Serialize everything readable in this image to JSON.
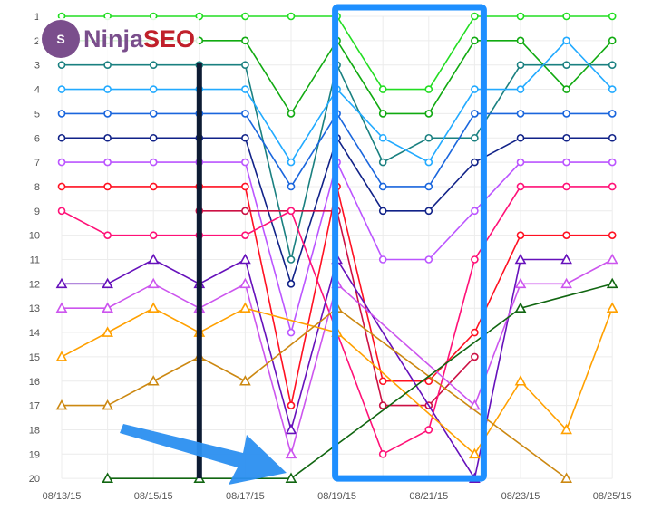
{
  "brand": {
    "part1": "Ninja",
    "part2": "SEO",
    "badge_letter": "S"
  },
  "chart_data": {
    "type": "line",
    "title": "",
    "xlabel": "",
    "ylabel": "",
    "x": [
      "08/13/15",
      "08/14/15",
      "08/15/15",
      "08/16/15",
      "08/17/15",
      "08/18/15",
      "08/19/15",
      "08/20/15",
      "08/21/15",
      "08/22/15",
      "08/23/15",
      "08/24/15",
      "08/25/15"
    ],
    "x_tick_labels": [
      "08/13/15",
      "08/15/15",
      "08/17/15",
      "08/19/15",
      "08/21/15",
      "08/23/15",
      "08/25/15"
    ],
    "y_tick_labels": [
      "1",
      "2",
      "3",
      "4",
      "5",
      "6",
      "7",
      "8",
      "9",
      "10",
      "11",
      "12",
      "13",
      "14",
      "15",
      "16",
      "17",
      "18",
      "19",
      "20"
    ],
    "ylim": [
      1,
      20
    ],
    "y_inverted": true,
    "grid": true,
    "series": [
      {
        "color": "#22dd22",
        "marker": "circle",
        "values": [
          1,
          1,
          1,
          1,
          1,
          1,
          1,
          4,
          4,
          1,
          1,
          1,
          1
        ]
      },
      {
        "color": "#11aa11",
        "marker": "circle",
        "values": [
          2,
          2,
          2,
          2,
          2,
          5,
          2,
          5,
          5,
          2,
          2,
          4,
          2
        ]
      },
      {
        "color": "#1a8080",
        "marker": "circle",
        "values": [
          3,
          3,
          3,
          3,
          3,
          11,
          3,
          7,
          6,
          6,
          3,
          3,
          3
        ]
      },
      {
        "color": "#22aaff",
        "marker": "circle",
        "values": [
          4,
          4,
          4,
          4,
          4,
          7,
          4,
          6,
          7,
          4,
          4,
          2,
          4
        ]
      },
      {
        "color": "#1a66dd",
        "marker": "circle",
        "values": [
          5,
          5,
          5,
          5,
          5,
          8,
          5,
          8,
          8,
          5,
          5,
          5,
          5
        ]
      },
      {
        "color": "#112288",
        "marker": "circle",
        "values": [
          6,
          6,
          6,
          6,
          6,
          12,
          6,
          9,
          9,
          7,
          6,
          6,
          6
        ]
      },
      {
        "color": "#bb55ff",
        "marker": "circle",
        "values": [
          7,
          7,
          7,
          7,
          7,
          14,
          7,
          11,
          11,
          9,
          7,
          7,
          7
        ]
      },
      {
        "color": "#ff1122",
        "marker": "circle",
        "values": [
          8,
          8,
          8,
          8,
          8,
          17,
          8,
          16,
          16,
          14,
          10,
          10,
          10
        ]
      },
      {
        "color": "#cc1144",
        "marker": "circle",
        "values": [
          null,
          null,
          null,
          9,
          9,
          null,
          9,
          17,
          17,
          15,
          null,
          null,
          null
        ]
      },
      {
        "color": "#ff1177",
        "marker": "circle",
        "values": [
          9,
          10,
          10,
          10,
          10,
          9,
          null,
          19,
          18,
          11,
          8,
          8,
          8
        ]
      },
      {
        "color": "#6611bb",
        "marker": "triangle",
        "values": [
          12,
          12,
          11,
          12,
          11,
          18,
          11,
          null,
          null,
          20,
          11,
          11,
          null
        ]
      },
      {
        "color": "#cc55ee",
        "marker": "triangle",
        "values": [
          13,
          13,
          12,
          13,
          12,
          19,
          12,
          null,
          null,
          17,
          12,
          12,
          11
        ]
      },
      {
        "color": "#ffa000",
        "marker": "triangle",
        "values": [
          15,
          14,
          13,
          14,
          13,
          null,
          14,
          null,
          null,
          19,
          16,
          18,
          13
        ]
      },
      {
        "color": "#cc8811",
        "marker": "triangle",
        "values": [
          17,
          17,
          16,
          15,
          16,
          null,
          13,
          null,
          null,
          null,
          null,
          20,
          null
        ]
      },
      {
        "color": "#116611",
        "marker": "triangle",
        "values": [
          null,
          20,
          null,
          20,
          null,
          20,
          null,
          null,
          null,
          null,
          13,
          null,
          12
        ]
      }
    ],
    "annotations": {
      "vertical_marker_date": "08/16/15",
      "highlight_range": [
        "08/19/15",
        "08/22/15"
      ],
      "highlight_color": "#1e8fff",
      "arrow_color": "#2b8ff0",
      "marker_color": "#0d1b33"
    }
  }
}
